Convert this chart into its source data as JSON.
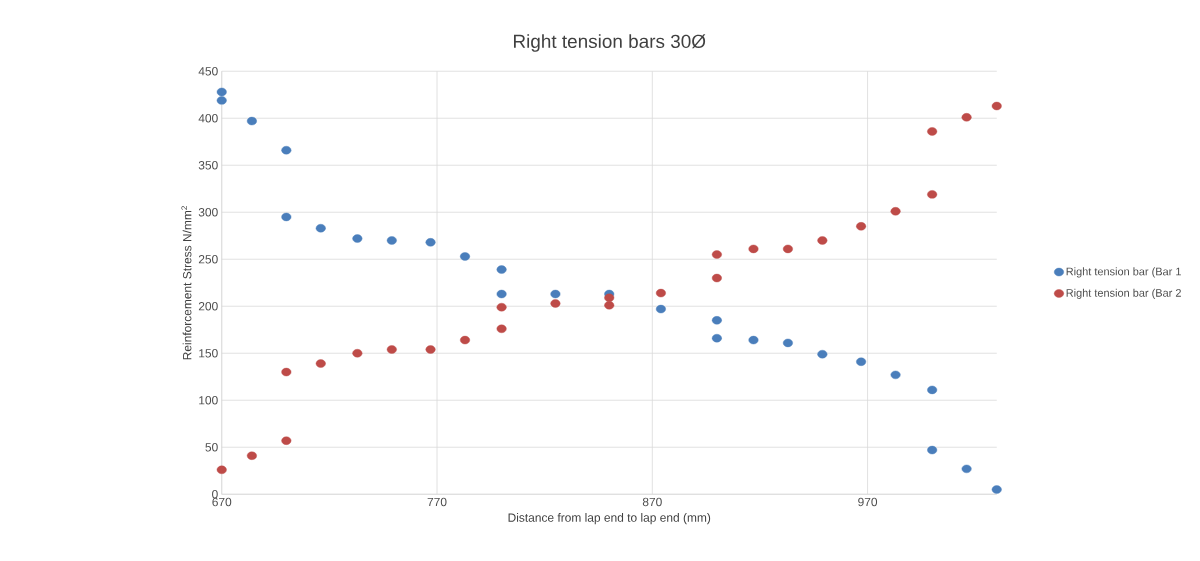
{
  "chart_data": {
    "type": "scatter",
    "title": "Right tension bars 30Ø",
    "xlabel": "Distance from lap end to lap end (mm)",
    "ylabel": "Reinforcement Stress N/mm$^{2}$",
    "xlim": [
      670,
      1030
    ],
    "xticks": [
      670,
      770,
      870,
      970
    ],
    "ylim": [
      0,
      450
    ],
    "yticks": [
      0,
      50,
      100,
      150,
      200,
      250,
      300,
      350,
      400,
      450
    ],
    "grid": true,
    "legend": "right",
    "marker": "circle",
    "series": [
      {
        "name": "Right tension bar (Bar 1",
        "color": "#4a7ebb",
        "x": [
          670,
          670,
          684,
          700,
          700,
          716,
          733,
          749,
          767,
          783,
          800,
          800,
          825,
          850,
          874,
          900,
          900,
          917,
          933,
          949,
          967,
          983,
          1000,
          1000,
          1016,
          1030
        ],
        "values": [
          428,
          419,
          397,
          366,
          295,
          283,
          272,
          270,
          268,
          253,
          239,
          213,
          213,
          213,
          197,
          185,
          166,
          164,
          161,
          149,
          141,
          127,
          111,
          47,
          27,
          5
        ]
      },
      {
        "name": "Right tension bar (Bar 2",
        "color": "#be4b48",
        "x": [
          670,
          684,
          700,
          700,
          716,
          733,
          749,
          767,
          783,
          800,
          800,
          825,
          850,
          850,
          874,
          900,
          900,
          917,
          933,
          949,
          967,
          983,
          1000,
          1000,
          1016,
          1030
        ],
        "values": [
          26,
          41,
          57,
          130,
          139,
          150,
          154,
          154,
          164,
          176,
          199,
          203,
          201,
          209,
          214,
          230,
          255,
          261,
          261,
          270,
          285,
          301,
          319,
          386,
          401,
          413
        ]
      }
    ]
  }
}
